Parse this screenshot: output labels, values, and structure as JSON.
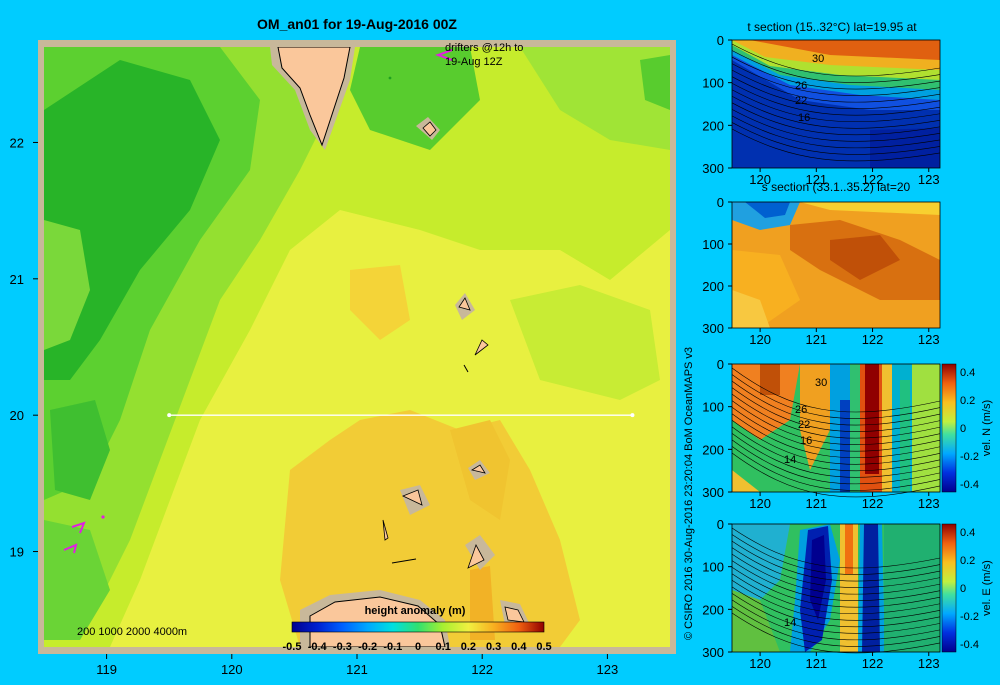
{
  "title": "OM_an01 for 19-Aug-2016 00Z",
  "map": {
    "lon_ticks": [
      "119",
      "120",
      "121",
      "122",
      "123"
    ],
    "lat_ticks": [
      "22",
      "21",
      "20",
      "19"
    ],
    "lon_range": [
      118.5,
      123.5
    ],
    "lat_range": [
      18.3,
      22.7
    ],
    "section_line": {
      "lat": 20,
      "lon": [
        119.5,
        123.2
      ]
    },
    "drifter_label": [
      "drifters @12h to",
      "19-Aug 12Z"
    ],
    "depth_legend": "200  1000  2000  4000m",
    "colorbar": {
      "title": "height anomaly  (m)",
      "ticks": [
        "-0.5",
        "-0.4",
        "-0.3",
        "-0.2",
        "-0.1",
        "0",
        "0.1",
        "0.2",
        "0.3",
        "0.4",
        "0.5"
      ],
      "colors": [
        "#00008f",
        "#0020d0",
        "#0060ff",
        "#00a8ff",
        "#00e0e0",
        "#30e070",
        "#a8f030",
        "#f0f040",
        "#f8b020",
        "#f06010",
        "#900000"
      ]
    }
  },
  "credit": "© CSIRO 2016   30-Aug-2016 23:20:04 BoM OceanMAPS v3",
  "panels": [
    {
      "title": "t section (15..32°C) lat=19.95 at",
      "contours": [
        "30",
        "26",
        "22",
        "16"
      ],
      "colorbar": null
    },
    {
      "title": "s section (33.1..35.2) lat=20",
      "contours": [],
      "colorbar": null
    },
    {
      "title": "",
      "contours": [
        "30",
        "26",
        "22",
        "16",
        "14"
      ],
      "colorbar": {
        "label": "vel. N  (m/s)",
        "ticks": [
          "0.4",
          "0.2",
          "0",
          "-0.2",
          "-0.4"
        ]
      }
    },
    {
      "title": "",
      "contours": [
        "14"
      ],
      "colorbar": {
        "label": "vel. E  (m/s)",
        "ticks": [
          "0.4",
          "0.2",
          "0",
          "-0.2",
          "-0.4"
        ]
      }
    }
  ],
  "panel_axes": {
    "x_ticks": [
      "120",
      "121",
      "122",
      "123"
    ],
    "y_ticks": [
      "0",
      "100",
      "200",
      "300"
    ]
  },
  "chart_data": [
    {
      "type": "heatmap",
      "title": "OM_an01 for 19-Aug-2016 00Z",
      "variable": "height anomaly (m)",
      "x_range": [
        118.5,
        123.5
      ],
      "y_range": [
        18.3,
        22.7
      ],
      "value_range": [
        -0.5,
        0.5
      ]
    },
    {
      "type": "heatmap",
      "title": "t section (15..32°C) lat=19.95 at",
      "x_range": [
        119.5,
        123.2
      ],
      "y_range": [
        0,
        300
      ],
      "contour_labels": [
        30,
        26,
        22,
        16
      ]
    },
    {
      "type": "heatmap",
      "title": "s section (33.1..35.2) lat=20",
      "x_range": [
        119.5,
        123.2
      ],
      "y_range": [
        0,
        300
      ]
    },
    {
      "type": "heatmap",
      "variable": "vel. N (m/s)",
      "x_range": [
        119.5,
        123.2
      ],
      "y_range": [
        0,
        300
      ],
      "value_range": [
        -0.4,
        0.4
      ]
    },
    {
      "type": "heatmap",
      "variable": "vel. E (m/s)",
      "x_range": [
        119.5,
        123.2
      ],
      "y_range": [
        0,
        300
      ],
      "value_range": [
        -0.4,
        0.4
      ]
    }
  ]
}
